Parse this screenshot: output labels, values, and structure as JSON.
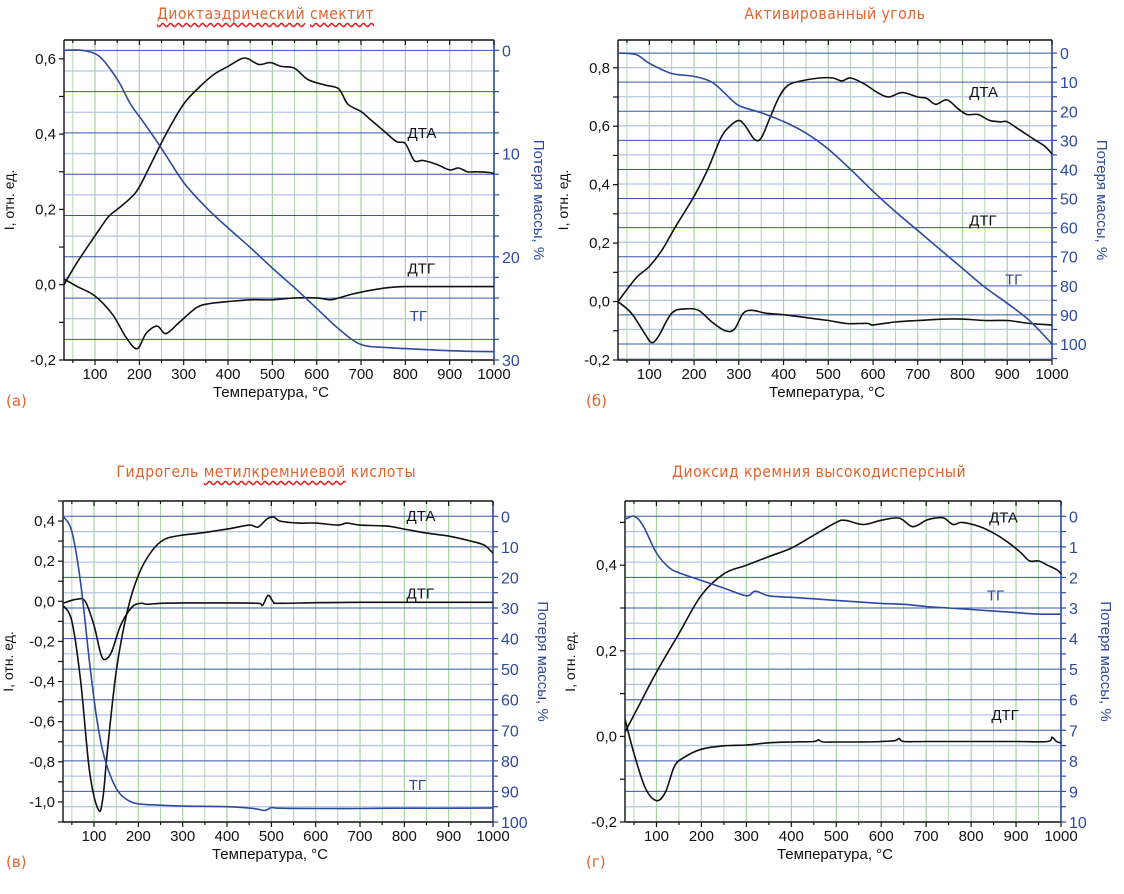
{
  "colors": {
    "title": "#e0642e",
    "left_axis": "#111111",
    "right_axis": "#2d4a9e",
    "tg_line": "#2d4a9e",
    "dta_line": "#111111",
    "grid_h_major": "#3a55a6",
    "grid_h_minor": "#b7c4e2",
    "grid_v": "#a6d4a0"
  },
  "chart_data": [
    {
      "id": "a",
      "type": "line",
      "panel_label": "(а)",
      "title_parts": [
        {
          "text": "Диоктаэдрический",
          "spell": true
        },
        {
          "text": " "
        },
        {
          "text": "смектит",
          "spell": true
        }
      ],
      "xlabel": "Температура, °С",
      "ylabel": "I, отн. ед.",
      "y2label": "Потеря массы, %",
      "xlim": [
        30,
        1000
      ],
      "xticks": [
        100,
        200,
        300,
        400,
        500,
        600,
        700,
        800,
        900,
        1000
      ],
      "ylim": [
        -0.2,
        0.65
      ],
      "yticks": [
        -0.2,
        0.0,
        0.2,
        0.4,
        0.6
      ],
      "ytick_labels": [
        "-0,2",
        "0,0",
        "0,2",
        "0,4",
        "0,6"
      ],
      "y2lim": [
        -1.0,
        30
      ],
      "y2ticks": [
        0,
        10,
        20,
        30
      ],
      "y2_minor": 2.0,
      "series": [
        {
          "name": "ДТА",
          "axis": "left",
          "color": "black",
          "label_at": [
            805,
            0.39
          ],
          "x": [
            30,
            60,
            100,
            130,
            150,
            180,
            200,
            230,
            260,
            300,
            340,
            370,
            400,
            430,
            445,
            470,
            495,
            520,
            550,
            580,
            620,
            650,
            670,
            700,
            720,
            750,
            780,
            800,
            820,
            840,
            870,
            900,
            920,
            940,
            960,
            990,
            1000
          ],
          "y": [
            0.0,
            0.06,
            0.13,
            0.18,
            0.2,
            0.23,
            0.26,
            0.33,
            0.4,
            0.48,
            0.53,
            0.56,
            0.58,
            0.6,
            0.6,
            0.585,
            0.59,
            0.58,
            0.575,
            0.545,
            0.53,
            0.52,
            0.48,
            0.46,
            0.44,
            0.41,
            0.38,
            0.375,
            0.33,
            0.33,
            0.32,
            0.305,
            0.31,
            0.3,
            0.3,
            0.298,
            0.295
          ]
        },
        {
          "name": "ДТГ",
          "axis": "left",
          "color": "black",
          "label_at": [
            805,
            0.03
          ],
          "x": [
            30,
            60,
            100,
            140,
            170,
            195,
            215,
            240,
            260,
            290,
            330,
            360,
            400,
            450,
            500,
            550,
            600,
            630,
            650,
            680,
            720,
            760,
            800,
            850,
            900,
            1000
          ],
          "y": [
            0.015,
            -0.005,
            -0.03,
            -0.08,
            -0.14,
            -0.17,
            -0.13,
            -0.11,
            -0.13,
            -0.1,
            -0.06,
            -0.05,
            -0.045,
            -0.04,
            -0.04,
            -0.035,
            -0.035,
            -0.04,
            -0.035,
            -0.025,
            -0.015,
            -0.008,
            -0.005,
            -0.005,
            -0.005,
            -0.005
          ]
        },
        {
          "name": "ТГ",
          "axis": "right",
          "color": "blue",
          "label_at": [
            810,
            26.2
          ],
          "x": [
            30,
            70,
            110,
            150,
            180,
            210,
            250,
            300,
            350,
            400,
            450,
            500,
            550,
            600,
            650,
            700,
            760,
            800,
            850,
            900,
            1000
          ],
          "y": [
            0.0,
            0.0,
            0.6,
            2.8,
            5.2,
            7.0,
            9.5,
            12.8,
            15.2,
            17.2,
            19.1,
            21.1,
            23.0,
            25.0,
            27.0,
            28.5,
            28.8,
            28.9,
            29.0,
            29.1,
            29.2
          ]
        }
      ]
    },
    {
      "id": "b",
      "type": "line",
      "panel_label": "(б)",
      "title_parts": [
        {
          "text": "Активированный уголь"
        }
      ],
      "xlabel": "Температура, °С",
      "ylabel": "I, отн. ед.",
      "y2label": "Потеря массы, %",
      "xlim": [
        30,
        1000
      ],
      "xticks": [
        100,
        200,
        300,
        400,
        500,
        600,
        700,
        800,
        900,
        1000
      ],
      "ylim": [
        -0.2,
        0.895
      ],
      "yticks": [
        -0.2,
        0.0,
        0.2,
        0.4,
        0.6,
        0.8
      ],
      "ytick_labels": [
        "-0,2",
        "0,0",
        "0,2",
        "0,4",
        "0,6",
        "0,8"
      ],
      "y2lim": [
        -4.5,
        105.5
      ],
      "y2ticks": [
        0,
        10,
        20,
        30,
        40,
        50,
        60,
        70,
        80,
        90,
        100
      ],
      "y2_minor": 5,
      "series": [
        {
          "name": "ДТА",
          "axis": "left",
          "color": "black",
          "label_at": [
            815,
            0.7
          ],
          "x": [
            30,
            70,
            100,
            130,
            160,
            200,
            230,
            260,
            280,
            300,
            315,
            335,
            350,
            370,
            390,
            410,
            440,
            480,
            510,
            530,
            550,
            580,
            610,
            635,
            665,
            700,
            720,
            740,
            765,
            790,
            810,
            835,
            860,
            885,
            900,
            930,
            960,
            985,
            1000
          ],
          "y": [
            0.0,
            0.08,
            0.12,
            0.18,
            0.26,
            0.36,
            0.45,
            0.56,
            0.6,
            0.62,
            0.6,
            0.555,
            0.56,
            0.63,
            0.7,
            0.74,
            0.755,
            0.765,
            0.765,
            0.755,
            0.765,
            0.745,
            0.715,
            0.7,
            0.715,
            0.7,
            0.695,
            0.675,
            0.69,
            0.66,
            0.64,
            0.64,
            0.62,
            0.615,
            0.615,
            0.585,
            0.555,
            0.53,
            0.505
          ]
        },
        {
          "name": "ДТГ",
          "axis": "left",
          "color": "black",
          "label_at": [
            815,
            0.26
          ],
          "x": [
            30,
            60,
            90,
            105,
            120,
            150,
            180,
            210,
            240,
            270,
            290,
            310,
            330,
            360,
            400,
            450,
            500,
            540,
            570,
            590,
            600,
            650,
            700,
            760,
            800,
            850,
            900,
            950,
            1000
          ],
          "y": [
            0.0,
            -0.04,
            -0.11,
            -0.14,
            -0.12,
            -0.04,
            -0.025,
            -0.03,
            -0.07,
            -0.1,
            -0.095,
            -0.04,
            -0.03,
            -0.04,
            -0.045,
            -0.055,
            -0.065,
            -0.075,
            -0.075,
            -0.075,
            -0.08,
            -0.07,
            -0.065,
            -0.06,
            -0.06,
            -0.065,
            -0.065,
            -0.075,
            -0.08
          ]
        },
        {
          "name": "ТГ",
          "axis": "right",
          "color": "blue",
          "label_at": [
            895,
            79.5
          ],
          "x": [
            30,
            70,
            100,
            150,
            200,
            240,
            270,
            300,
            350,
            400,
            450,
            500,
            550,
            600,
            650,
            700,
            750,
            800,
            850,
            900,
            950,
            1000
          ],
          "y": [
            0.0,
            0.5,
            3.5,
            7.0,
            8.0,
            10.0,
            14.0,
            18.0,
            20.5,
            23.5,
            27.5,
            33.0,
            40.0,
            47.5,
            54.5,
            61.0,
            67.5,
            74.0,
            80.5,
            86.0,
            92.0,
            100.0
          ]
        }
      ]
    },
    {
      "id": "c",
      "type": "line",
      "panel_label": "(в)",
      "title_parts": [
        {
          "text": "Гидрогель "
        },
        {
          "text": "метилкремниевой",
          "spell": true
        },
        {
          "text": " кислоты"
        }
      ],
      "xlabel": "Температура, °С",
      "ylabel": "I, отн. ед.",
      "y2label": "Потеря массы, %",
      "xlim": [
        30,
        1000
      ],
      "xticks": [
        100,
        200,
        300,
        400,
        500,
        600,
        700,
        800,
        900,
        1000
      ],
      "ylim": [
        -1.1,
        0.5
      ],
      "yticks": [
        -1.0,
        -0.8,
        -0.6,
        -0.4,
        -0.2,
        0.0,
        0.2,
        0.4
      ],
      "ytick_labels": [
        "-1,0",
        "-0,8",
        "-0,6",
        "-0,4",
        "-0,2",
        "0,0",
        "0,2",
        "0,4"
      ],
      "y2lim": [
        -5,
        100
      ],
      "y2ticks": [
        0,
        10,
        20,
        30,
        40,
        50,
        60,
        70,
        80,
        90,
        100
      ],
      "y2_minor": 5,
      "series": [
        {
          "name": "ДТА",
          "axis": "left",
          "color": "black",
          "label_at": [
            805,
            0.4
          ],
          "x": [
            30,
            50,
            70,
            90,
            110,
            120,
            130,
            150,
            175,
            200,
            230,
            260,
            300,
            340,
            400,
            450,
            470,
            490,
            505,
            520,
            560,
            600,
            650,
            670,
            700,
            760,
            800,
            850,
            900,
            950,
            980,
            1000
          ],
          "y": [
            -0.02,
            -0.1,
            -0.4,
            -0.85,
            -1.04,
            -0.98,
            -0.75,
            -0.35,
            -0.05,
            0.13,
            0.25,
            0.31,
            0.33,
            0.34,
            0.36,
            0.38,
            0.37,
            0.41,
            0.42,
            0.4,
            0.39,
            0.39,
            0.38,
            0.39,
            0.38,
            0.375,
            0.36,
            0.34,
            0.325,
            0.3,
            0.28,
            0.24
          ]
        },
        {
          "name": "ДТГ",
          "axis": "left",
          "color": "black",
          "label_at": [
            805,
            0.015
          ],
          "x": [
            30,
            60,
            80,
            100,
            115,
            125,
            140,
            160,
            185,
            205,
            220,
            250,
            300,
            400,
            470,
            480,
            493,
            505,
            515,
            600,
            700,
            800,
            900,
            1000
          ],
          "y": [
            -0.01,
            0.01,
            0.0,
            -0.12,
            -0.26,
            -0.29,
            -0.25,
            -0.12,
            -0.03,
            -0.01,
            -0.015,
            -0.01,
            -0.008,
            -0.008,
            -0.01,
            -0.02,
            0.03,
            -0.005,
            -0.01,
            -0.007,
            -0.005,
            -0.005,
            -0.005,
            -0.005
          ]
        },
        {
          "name": "ТГ",
          "axis": "right",
          "color": "blue",
          "label_at": [
            810,
            89.5
          ],
          "x": [
            30,
            50,
            70,
            90,
            105,
            120,
            140,
            160,
            185,
            210,
            250,
            300,
            400,
            460,
            485,
            500,
            520,
            600,
            700,
            800,
            900,
            1000
          ],
          "y": [
            0.0,
            5.0,
            22.0,
            48.0,
            65.0,
            77.0,
            86.0,
            91.0,
            93.5,
            94.2,
            94.5,
            94.8,
            95.0,
            95.6,
            96.2,
            95.3,
            95.5,
            95.6,
            95.6,
            95.5,
            95.5,
            95.4
          ]
        }
      ]
    },
    {
      "id": "d",
      "type": "line",
      "panel_label": "(г)",
      "title_parts": [
        {
          "text": "Диоксид кремния высокодисперсный"
        }
      ],
      "xlabel": "Температура, °С",
      "ylabel": "I, отн. ед.",
      "y2label": "Потеря массы, %",
      "xlim": [
        30,
        1000
      ],
      "xticks": [
        100,
        200,
        300,
        400,
        500,
        600,
        700,
        800,
        900,
        1000
      ],
      "ylim": [
        -0.2,
        0.55
      ],
      "yticks": [
        -0.2,
        0.0,
        0.2,
        0.4
      ],
      "ytick_labels": [
        "-0,2",
        "0,0",
        "0,2",
        "0,4"
      ],
      "y2lim": [
        -0.5,
        10
      ],
      "y2ticks": [
        0,
        1,
        2,
        3,
        4,
        5,
        6,
        7,
        8,
        9,
        10
      ],
      "y2_minor": 0.5,
      "series": [
        {
          "name": "ДТА",
          "axis": "left",
          "color": "black",
          "label_at": [
            840,
            0.5
          ],
          "x": [
            30,
            60,
            100,
            150,
            200,
            250,
            300,
            350,
            400,
            450,
            500,
            520,
            560,
            600,
            640,
            670,
            700,
            720,
            740,
            760,
            780,
            820,
            850,
            880,
            910,
            930,
            950,
            970,
            990,
            1000
          ],
          "y": [
            0.01,
            0.07,
            0.15,
            0.24,
            0.33,
            0.38,
            0.4,
            0.42,
            0.44,
            0.47,
            0.5,
            0.505,
            0.495,
            0.505,
            0.51,
            0.49,
            0.505,
            0.51,
            0.51,
            0.495,
            0.5,
            0.49,
            0.475,
            0.455,
            0.43,
            0.41,
            0.41,
            0.4,
            0.39,
            0.38
          ]
        },
        {
          "name": "ДТГ",
          "axis": "left",
          "color": "black",
          "label_at": [
            845,
            0.038
          ],
          "x": [
            30,
            50,
            75,
            100,
            120,
            140,
            160,
            200,
            250,
            300,
            350,
            400,
            450,
            460,
            470,
            500,
            550,
            600,
            630,
            640,
            650,
            700,
            800,
            900,
            970,
            980,
            990,
            1000
          ],
          "y": [
            0.04,
            -0.04,
            -0.12,
            -0.15,
            -0.13,
            -0.07,
            -0.05,
            -0.03,
            -0.022,
            -0.02,
            -0.015,
            -0.013,
            -0.012,
            -0.008,
            -0.013,
            -0.013,
            -0.013,
            -0.012,
            -0.01,
            -0.005,
            -0.012,
            -0.012,
            -0.012,
            -0.012,
            -0.012,
            -0.002,
            -0.012,
            -0.015
          ]
        },
        {
          "name": "ТГ",
          "axis": "right",
          "color": "blue",
          "label_at": [
            835,
            2.75
          ],
          "x": [
            30,
            50,
            70,
            100,
            130,
            160,
            200,
            250,
            300,
            320,
            350,
            400,
            450,
            500,
            550,
            600,
            650,
            700,
            750,
            800,
            850,
            900,
            950,
            1000
          ],
          "y": [
            0.1,
            0.0,
            0.3,
            1.2,
            1.7,
            1.9,
            2.1,
            2.35,
            2.6,
            2.45,
            2.6,
            2.65,
            2.7,
            2.75,
            2.8,
            2.85,
            2.88,
            2.95,
            3.0,
            3.05,
            3.1,
            3.15,
            3.2,
            3.2
          ]
        }
      ]
    }
  ]
}
